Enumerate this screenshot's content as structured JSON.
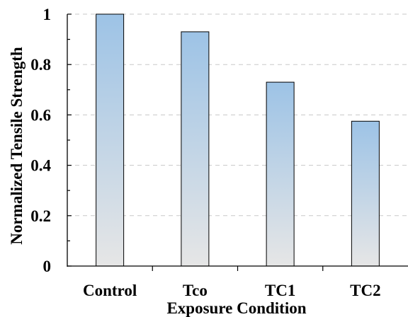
{
  "chart_data": {
    "type": "bar",
    "categories": [
      "Control",
      "Tco",
      "TC1",
      "TC2"
    ],
    "values": [
      1.0,
      0.93,
      0.73,
      0.575
    ],
    "title": "",
    "xlabel": "Exposure Condition",
    "ylabel": "Normalized Tensile Strength",
    "ylim": [
      0,
      1
    ],
    "yticks": [
      0,
      0.2,
      0.4,
      0.6,
      0.8,
      1
    ],
    "ytick_labels": [
      "0",
      "0.2",
      "0.4",
      "0.6",
      "0.8",
      "1"
    ],
    "grid": "horizontal dashed",
    "legend": "none",
    "colors": {
      "bar_top": "#9dc3e6",
      "bar_bottom": "#e6e6e6",
      "bar_edge": "#000000",
      "grid": "#c8c8c8"
    }
  }
}
